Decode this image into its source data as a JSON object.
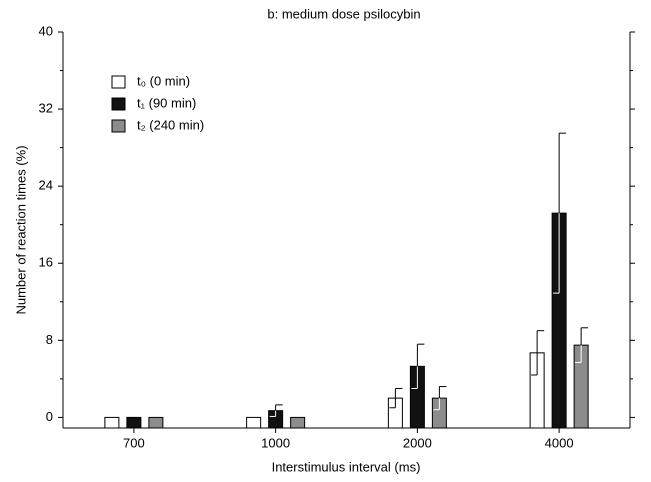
{
  "chart_data": {
    "type": "bar",
    "title": "b: medium dose psilocybin",
    "x_label": "Interstimulus interval (ms)",
    "y_label": "Number of reaction times (%)",
    "categories": [
      "700",
      "1000",
      "2000",
      "4000"
    ],
    "series": [
      {
        "name": "t₀ (0 min)",
        "color": "#ffffff",
        "values": [
          0,
          0,
          2.0,
          6.7
        ],
        "errors": [
          null,
          null,
          1.0,
          2.3
        ]
      },
      {
        "name": "t₁ (90 min)",
        "color": "#111111",
        "values": [
          0,
          0.7,
          5.3,
          21.2
        ],
        "errors": [
          null,
          0.6,
          2.3,
          8.3
        ]
      },
      {
        "name": "t₂ (240 min)",
        "color": "#8c8c8c",
        "values": [
          0,
          0,
          2.0,
          7.5
        ],
        "errors": [
          null,
          null,
          1.2,
          1.8
        ]
      }
    ],
    "ylim": [
      -1.1,
      40
    ],
    "yticks": [
      0,
      8,
      16,
      24,
      32,
      40
    ],
    "legend": "upper left"
  }
}
